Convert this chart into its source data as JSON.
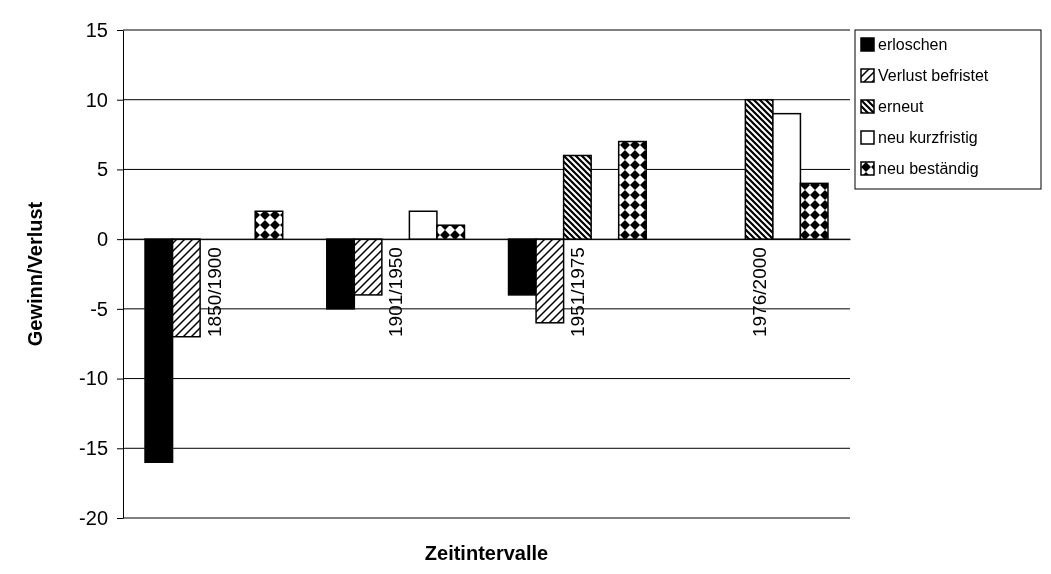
{
  "chart_data": {
    "type": "bar",
    "xlabel": "Zeitintervalle",
    "ylabel": "Gewinn/Verlust",
    "categories": [
      "1850/1900",
      "1901/1950",
      "1951/1975",
      "1976/2000"
    ],
    "series": [
      {
        "name": "erloschen",
        "color": "#000000",
        "values": [
          -16,
          -5,
          -4,
          0
        ]
      },
      {
        "name": "Verlust befristet",
        "color": "#000000",
        "values": [
          -7,
          -4,
          -6,
          0
        ]
      },
      {
        "name": "erneut",
        "color": "#000000",
        "values": [
          0,
          0,
          6,
          10
        ]
      },
      {
        "name": "neu kurzfristig",
        "color": "#000000",
        "values": [
          0,
          2,
          0,
          9
        ]
      },
      {
        "name": "neu beständig",
        "color": "#000000",
        "values": [
          2,
          1,
          7,
          4
        ]
      }
    ],
    "ylim": [
      -20,
      15
    ],
    "yticks": [
      -20,
      -15,
      -10,
      -5,
      0,
      5,
      10,
      15
    ],
    "grid": "y",
    "legend": "top right"
  }
}
